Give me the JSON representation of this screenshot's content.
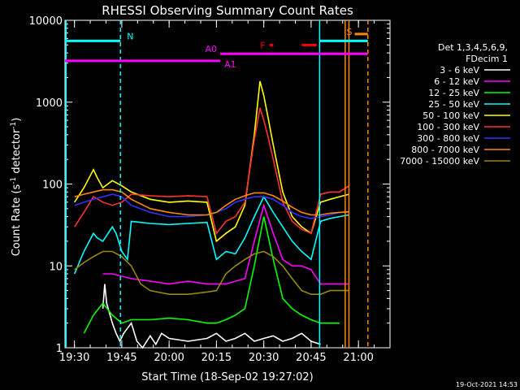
{
  "chart_data": {
    "type": "line",
    "title": "RHESSI Observing Summary Count Rates",
    "xlabel": "Start Time (18-Sep-02 19:27:02)",
    "ylabel_main": "Count Rate (s",
    "ylabel_sup1": "-1",
    "ylabel_mid": " detector",
    "ylabel_sup2": "-1",
    "ylabel_end": ")",
    "xlim_min": [
      19.45,
      21.1667
    ],
    "ylim": [
      1,
      10000
    ],
    "yscale": "log",
    "x_ticks": [
      {
        "v": 19.5,
        "label": "19:30"
      },
      {
        "v": 19.75,
        "label": "19:45"
      },
      {
        "v": 20.0,
        "label": "20:00"
      },
      {
        "v": 20.25,
        "label": "20:15"
      },
      {
        "v": 20.5,
        "label": "20:30"
      },
      {
        "v": 20.75,
        "label": "20:45"
      },
      {
        "v": 21.0,
        "label": "21:00"
      }
    ],
    "y_ticks": [
      {
        "v": 1,
        "label": "1"
      },
      {
        "v": 10,
        "label": "10"
      },
      {
        "v": 100,
        "label": "100"
      },
      {
        "v": 1000,
        "label": "1000"
      },
      {
        "v": 10000,
        "label": "10000"
      }
    ],
    "legend_header": [
      "Det 1,3,4,5,6,9,",
      "FDecim 1"
    ],
    "series": [
      {
        "name": "3 - 6 keV",
        "color": "#ffffff",
        "x": [
          19.65,
          19.66,
          19.67,
          19.7,
          19.72,
          19.74,
          19.76,
          19.8,
          19.83,
          19.86,
          19.9,
          19.93,
          19.96,
          20.0,
          20.1,
          20.2,
          20.25,
          20.3,
          20.35,
          20.4,
          20.45,
          20.5,
          20.55,
          20.6,
          20.65,
          20.7,
          20.75,
          20.8
        ],
        "y": [
          3,
          6,
          3.5,
          2,
          1.5,
          1.2,
          1.5,
          2,
          1.2,
          1,
          1.4,
          1.1,
          1.5,
          1.3,
          1.2,
          1.3,
          1.5,
          1.2,
          1.3,
          1.5,
          1.2,
          1.3,
          1.4,
          1.2,
          1.3,
          1.5,
          1.2,
          1.1
        ]
      },
      {
        "name": "6 - 12 keV",
        "color": "#ff00ff",
        "x": [
          19.65,
          19.7,
          19.8,
          19.9,
          20.0,
          20.1,
          20.2,
          20.25,
          20.3,
          20.35,
          20.4,
          20.45,
          20.5,
          20.55,
          20.6,
          20.65,
          20.7,
          20.75,
          20.8,
          20.85,
          20.9,
          20.95
        ],
        "y": [
          8,
          8,
          7,
          6.5,
          6,
          6.5,
          6,
          6,
          6,
          6.5,
          7,
          20,
          55,
          25,
          12,
          10,
          10,
          9,
          6,
          6,
          6,
          6
        ]
      },
      {
        "name": "12 - 25 keV",
        "color": "#00ff00",
        "x": [
          19.55,
          19.6,
          19.65,
          19.7,
          19.75,
          19.8,
          19.9,
          20.0,
          20.1,
          20.2,
          20.25,
          20.3,
          20.35,
          20.4,
          20.45,
          20.5,
          20.55,
          20.6,
          20.65,
          20.7,
          20.75,
          20.8,
          20.85,
          20.9
        ],
        "y": [
          1.5,
          2.5,
          3.5,
          2.5,
          2,
          2.2,
          2.2,
          2.3,
          2.2,
          2,
          2,
          2.2,
          2.5,
          3,
          10,
          40,
          12,
          4,
          3,
          2.5,
          2.2,
          2,
          2,
          2
        ]
      },
      {
        "name": "25 - 50 keV",
        "color": "#00ffff",
        "x": [
          19.5,
          19.55,
          19.6,
          19.62,
          19.65,
          19.7,
          19.72,
          19.75,
          19.78,
          19.8,
          19.9,
          20.0,
          20.1,
          20.2,
          20.25,
          20.3,
          20.35,
          20.4,
          20.45,
          20.5,
          20.55,
          20.6,
          20.65,
          20.7,
          20.75,
          20.8,
          20.85,
          20.9,
          20.95
        ],
        "y": [
          8,
          15,
          25,
          22,
          20,
          30,
          25,
          15,
          12,
          35,
          33,
          32,
          33,
          34,
          12,
          15,
          14,
          22,
          40,
          70,
          45,
          30,
          20,
          15,
          12,
          35,
          38,
          40,
          42
        ]
      },
      {
        "name": "50 - 100 keV",
        "color": "#ffff00",
        "x": [
          19.5,
          19.55,
          19.6,
          19.62,
          19.65,
          19.7,
          19.75,
          19.8,
          19.9,
          20.0,
          20.1,
          20.2,
          20.25,
          20.3,
          20.35,
          20.4,
          20.45,
          20.48,
          20.5,
          20.52,
          20.55,
          20.6,
          20.65,
          20.7,
          20.75,
          20.8,
          20.85,
          20.9,
          20.95
        ],
        "y": [
          60,
          90,
          150,
          120,
          90,
          110,
          95,
          80,
          65,
          60,
          62,
          60,
          20,
          25,
          30,
          55,
          400,
          1800,
          1200,
          700,
          300,
          80,
          40,
          30,
          25,
          60,
          65,
          70,
          75
        ]
      },
      {
        "name": "100 - 300 keV",
        "color": "#ff3030",
        "x": [
          19.5,
          19.55,
          19.6,
          19.65,
          19.7,
          19.75,
          19.8,
          19.9,
          20.0,
          20.1,
          20.2,
          20.25,
          20.3,
          20.35,
          20.4,
          20.45,
          20.48,
          20.5,
          20.52,
          20.55,
          20.6,
          20.65,
          20.7,
          20.75,
          20.8,
          20.85,
          20.9,
          20.95
        ],
        "y": [
          30,
          45,
          70,
          60,
          55,
          60,
          75,
          72,
          70,
          72,
          70,
          25,
          35,
          40,
          60,
          350,
          850,
          600,
          400,
          200,
          60,
          35,
          28,
          25,
          75,
          80,
          80,
          95
        ]
      },
      {
        "name": "300 - 800 keV",
        "color": "#3030ff",
        "x": [
          19.5,
          19.55,
          19.6,
          19.65,
          19.7,
          19.75,
          19.8,
          19.9,
          20.0,
          20.1,
          20.2,
          20.25,
          20.3,
          20.35,
          20.4,
          20.45,
          20.5,
          20.55,
          20.6,
          20.65,
          20.7,
          20.75,
          20.8,
          20.85,
          20.9,
          20.95
        ],
        "y": [
          55,
          60,
          65,
          70,
          75,
          70,
          55,
          45,
          40,
          40,
          42,
          45,
          50,
          60,
          65,
          70,
          70,
          65,
          55,
          45,
          40,
          38,
          40,
          42,
          45,
          45
        ]
      },
      {
        "name": "800 - 7000 keV",
        "color": "#ff8800",
        "x": [
          19.5,
          19.55,
          19.6,
          19.65,
          19.7,
          19.75,
          19.8,
          19.9,
          20.0,
          20.1,
          20.2,
          20.25,
          20.3,
          20.35,
          20.4,
          20.45,
          20.5,
          20.55,
          20.6,
          20.65,
          20.7,
          20.75,
          20.8,
          20.85,
          20.9,
          20.95
        ],
        "y": [
          70,
          75,
          80,
          85,
          85,
          80,
          65,
          50,
          45,
          42,
          42,
          45,
          55,
          65,
          72,
          78,
          78,
          72,
          62,
          52,
          45,
          42,
          42,
          44,
          45,
          46
        ]
      },
      {
        "name": "7000 - 15000 keV",
        "color": "#998800",
        "x": [
          19.5,
          19.55,
          19.6,
          19.65,
          19.7,
          19.75,
          19.8,
          19.85,
          19.9,
          20.0,
          20.1,
          20.2,
          20.25,
          20.3,
          20.35,
          20.4,
          20.45,
          20.5,
          20.55,
          20.6,
          20.65,
          20.7,
          20.75,
          20.8,
          20.85,
          20.9,
          20.95
        ],
        "y": [
          9,
          11,
          13,
          15,
          15,
          13,
          10,
          6,
          5,
          4.5,
          4.5,
          4.8,
          5,
          8,
          10,
          12,
          14,
          15,
          13,
          10,
          7,
          5,
          4.5,
          4.5,
          5,
          5,
          5
        ]
      }
    ],
    "annotations": [
      {
        "label": "N",
        "color": "#00ffff",
        "x0": 19.45,
        "x1": 19.743,
        "y": 5600
      },
      {
        "label": "N",
        "color": "#00ffff",
        "x0": 20.795,
        "x1": 21.05,
        "y": 5600
      },
      {
        "label": "A0",
        "color": "#ff00ff",
        "x0": 20.27,
        "x1": 21.05,
        "y": 3900
      },
      {
        "label": "A1",
        "color": "#ff00ff",
        "x0": 19.45,
        "x1": 20.27,
        "y": 3200
      },
      {
        "label": "F",
        "color": "#ff0000",
        "x0": 20.53,
        "x1": 20.55,
        "y": 5000
      },
      {
        "label": "F",
        "color": "#ff0000",
        "x0": 20.7,
        "x1": 20.78,
        "y": 5000
      },
      {
        "label": "S",
        "color": "#ff8800",
        "x0": 20.98,
        "x1": 21.05,
        "y": 6800
      }
    ],
    "vlines": [
      {
        "x": 19.456,
        "color": "#00ffff",
        "dashed": false
      },
      {
        "x": 19.743,
        "color": "#00ffff",
        "dashed": true
      },
      {
        "x": 20.795,
        "color": "#00ffff",
        "dashed": false
      },
      {
        "x": 20.93,
        "color": "#ff8800",
        "dashed": false
      },
      {
        "x": 20.95,
        "color": "#ff8800",
        "dashed": false
      },
      {
        "x": 21.05,
        "color": "#ff8800",
        "dashed": true
      }
    ]
  },
  "footer_date": "19-Oct-2021 14:53"
}
